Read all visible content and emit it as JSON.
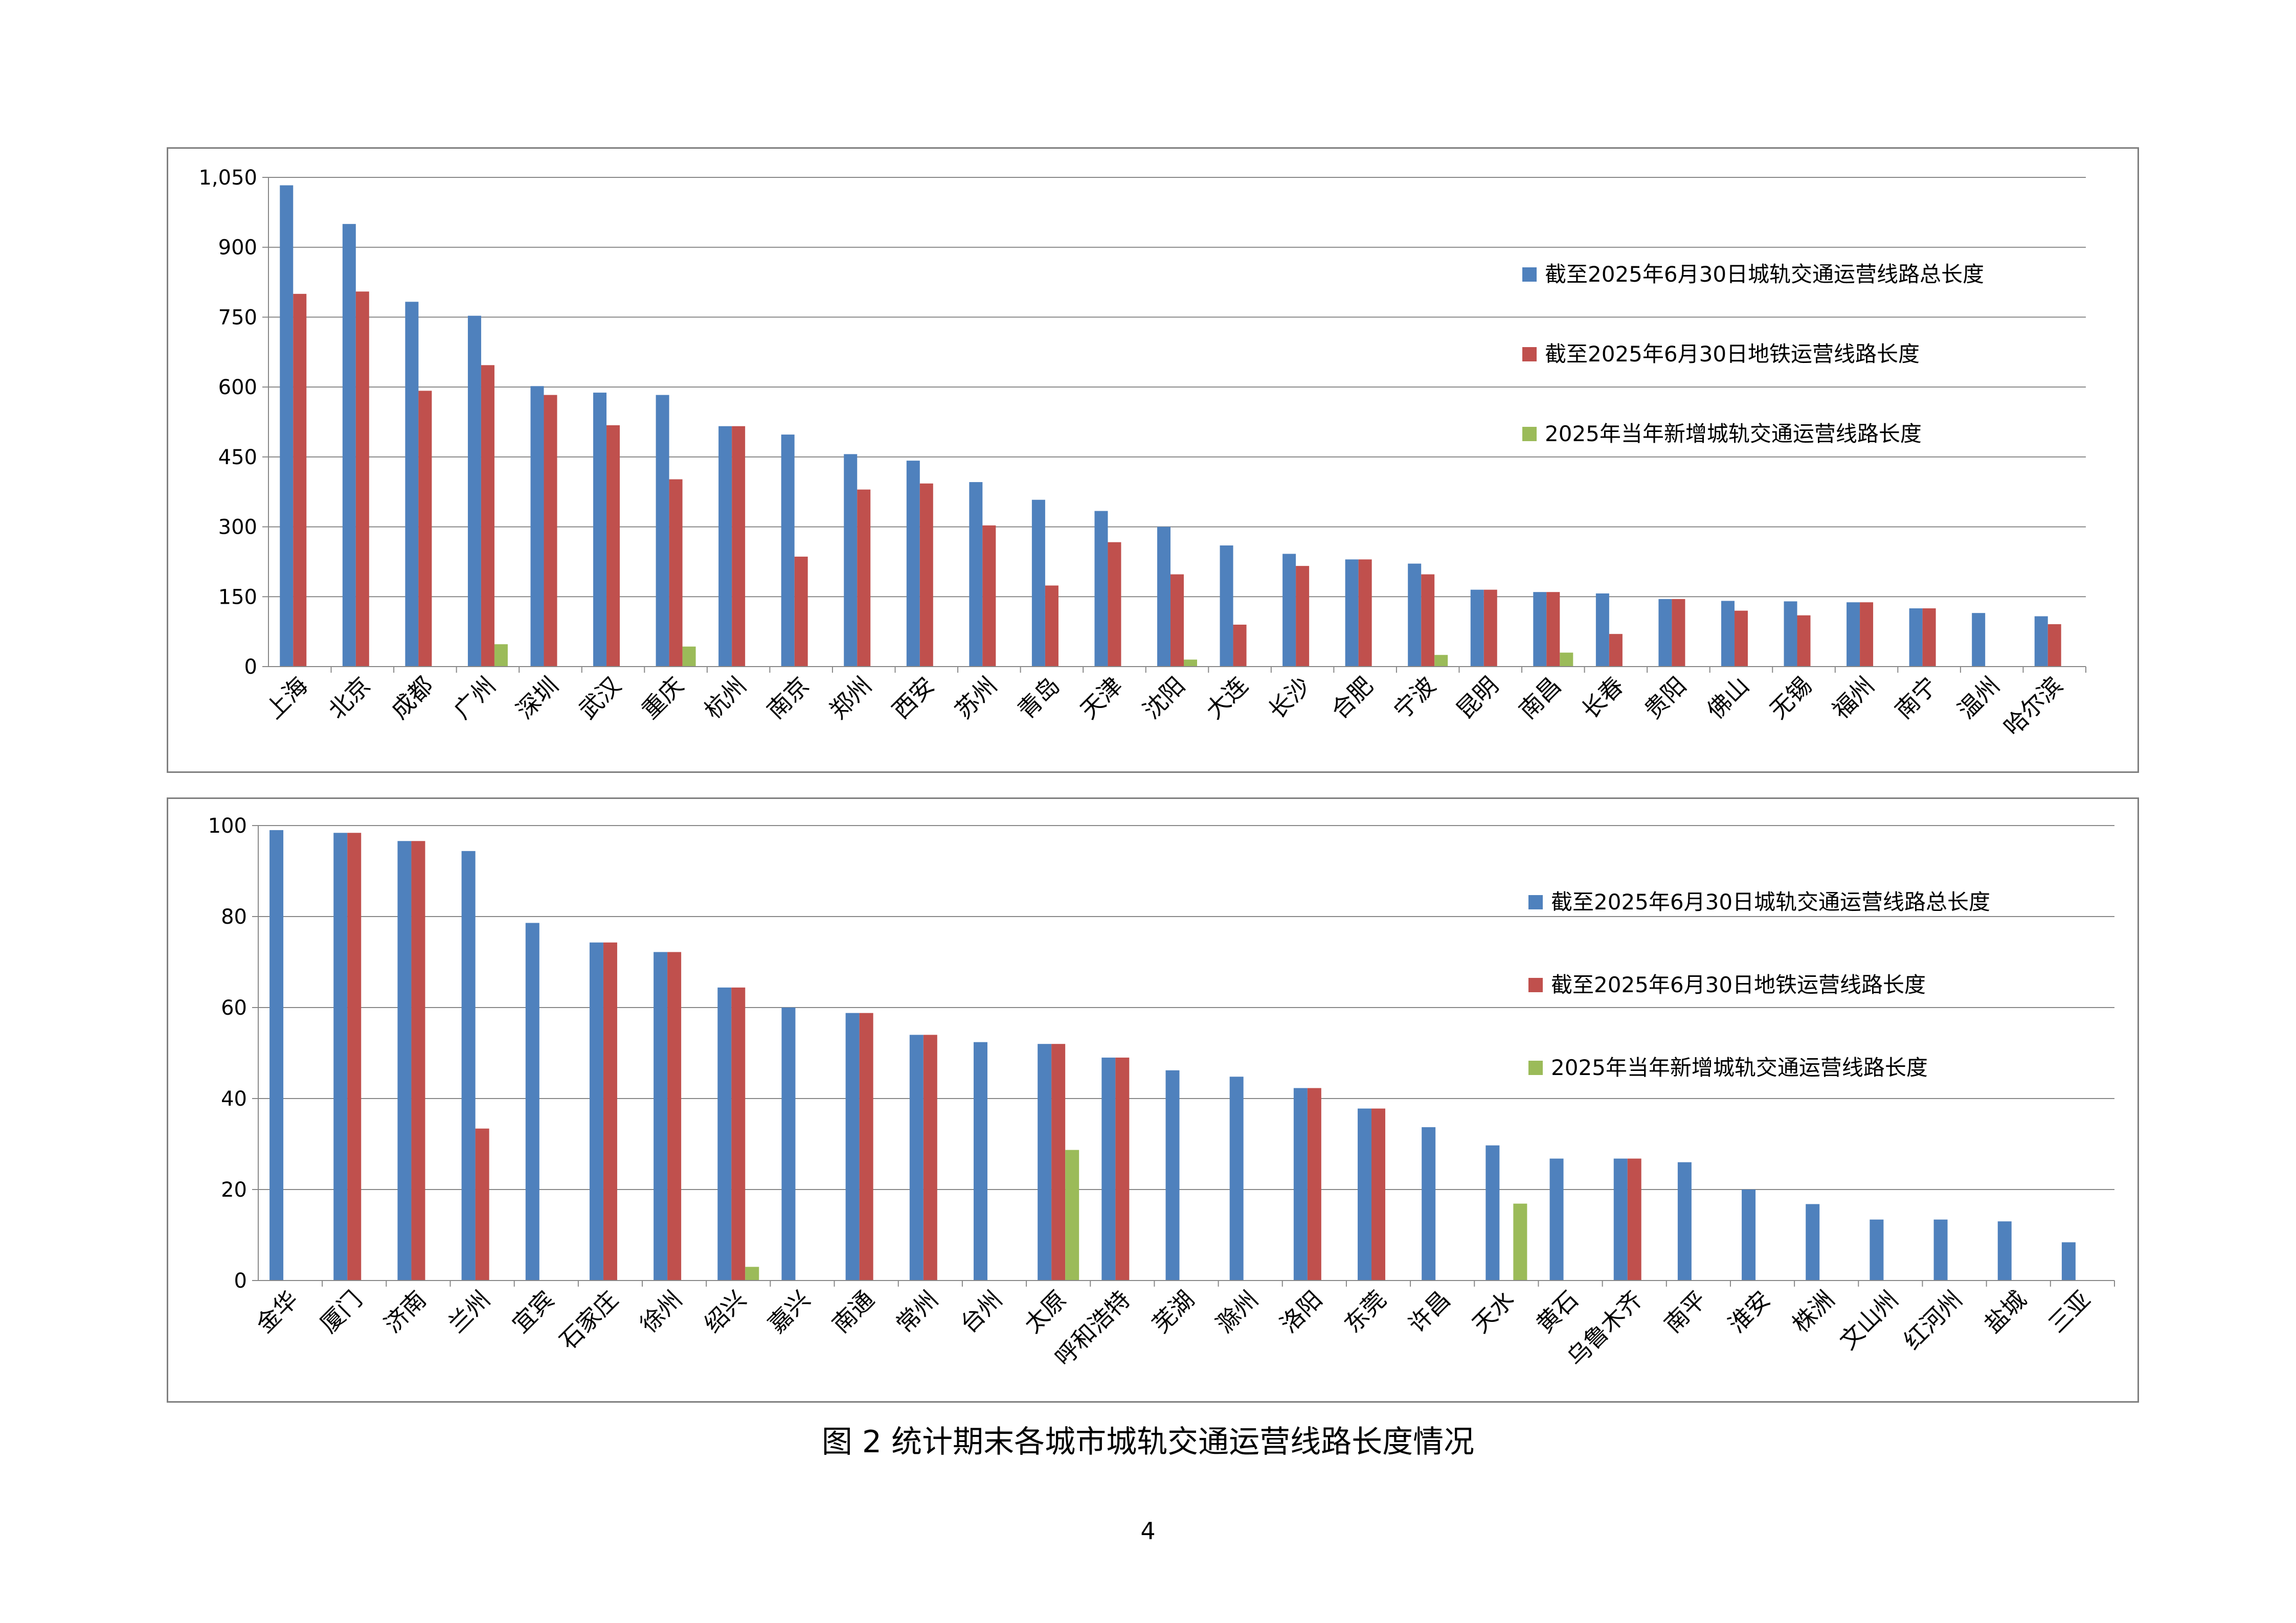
{
  "caption": "图 2  统计期末各城市城轨交通运营线路长度情况",
  "page_number": "4",
  "colors": {
    "total": "#4F81BD",
    "metro": "#C0504D",
    "new": "#9BBB59",
    "grid": "#888888"
  },
  "chart_data": [
    {
      "type": "bar",
      "legend_position": "right",
      "grid": true,
      "ylim": [
        0,
        1050
      ],
      "yticks": [
        "0",
        "150",
        "300",
        "450",
        "600",
        "750",
        "900",
        "1,050"
      ],
      "ytick_values": [
        0,
        150,
        300,
        450,
        600,
        750,
        900,
        1050
      ],
      "categories": [
        "上海",
        "北京",
        "成都",
        "广州",
        "深圳",
        "武汉",
        "重庆",
        "杭州",
        "南京",
        "郑州",
        "西安",
        "苏州",
        "青岛",
        "天津",
        "沈阳",
        "大连",
        "长沙",
        "合肥",
        "宁波",
        "昆明",
        "南昌",
        "长春",
        "贵阳",
        "佛山",
        "无锡",
        "福州",
        "南宁",
        "温州",
        "哈尔滨"
      ],
      "series": [
        {
          "name": "截至2025年6月30日城轨交通运营线路总长度",
          "color": "#4F81BD",
          "values": [
            1033,
            950,
            783,
            753,
            602,
            588,
            583,
            516,
            498,
            456,
            442,
            396,
            358,
            334,
            300,
            260,
            242,
            230,
            221,
            165,
            160,
            157,
            145,
            141,
            140,
            138,
            125,
            115,
            108
          ]
        },
        {
          "name": "截至2025年6月30日地铁运营线路长度",
          "color": "#C0504D",
          "values": [
            800,
            805,
            592,
            647,
            583,
            518,
            402,
            516,
            236,
            380,
            393,
            303,
            174,
            267,
            198,
            90,
            216,
            230,
            198,
            165,
            160,
            70,
            145,
            120,
            110,
            138,
            125,
            0,
            91
          ]
        },
        {
          "name": "2025年当年新增城轨交通运营线路长度",
          "color": "#9BBB59",
          "values": [
            0,
            0,
            0,
            48,
            0,
            0,
            43,
            0,
            0,
            0,
            0,
            0,
            0,
            0,
            15,
            0,
            0,
            0,
            25,
            0,
            30,
            0,
            0,
            0,
            0,
            0,
            0,
            0,
            0
          ]
        }
      ]
    },
    {
      "type": "bar",
      "legend_position": "right",
      "grid": true,
      "ylim": [
        0,
        100
      ],
      "yticks": [
        "0",
        "20",
        "40",
        "60",
        "80",
        "100"
      ],
      "ytick_values": [
        0,
        20,
        40,
        60,
        80,
        100
      ],
      "categories": [
        "金华",
        "厦门",
        "济南",
        "兰州",
        "宜宾",
        "石家庄",
        "徐州",
        "绍兴",
        "嘉兴",
        "南通",
        "常州",
        "台州",
        "太原",
        "呼和浩特",
        "芜湖",
        "滁州",
        "洛阳",
        "东莞",
        "许昌",
        "天水",
        "黄石",
        "乌鲁木齐",
        "南平",
        "淮安",
        "株洲",
        "文山州",
        "红河州",
        "盐城",
        "三亚"
      ],
      "series": [
        {
          "name": "截至2025年6月30日城轨交通运营线路总长度",
          "color": "#4F81BD",
          "values": [
            99,
            98.4,
            96.6,
            94.4,
            78.6,
            74.3,
            72.2,
            64.4,
            60,
            58.8,
            54,
            52.4,
            52,
            49,
            46.2,
            44.8,
            42.3,
            37.8,
            33.7,
            29.7,
            26.8,
            26.8,
            26,
            20,
            16.8,
            13.4,
            13.4,
            13,
            8.4
          ]
        },
        {
          "name": "截至2025年6月30日地铁运营线路长度",
          "color": "#C0504D",
          "values": [
            0,
            98.4,
            96.6,
            33.4,
            0,
            74.3,
            72.2,
            64.4,
            0,
            58.8,
            54,
            0,
            52,
            49,
            0,
            0,
            42.3,
            37.8,
            0,
            0,
            0,
            26.8,
            0,
            0,
            0,
            0,
            0,
            0,
            0
          ]
        },
        {
          "name": "2025年当年新增城轨交通运营线路长度",
          "color": "#9BBB59",
          "values": [
            0,
            0,
            0,
            0,
            0,
            0,
            0,
            3,
            0,
            0,
            0,
            0,
            28.7,
            0,
            0,
            0,
            0,
            0,
            0,
            16.9,
            0,
            0,
            0,
            0,
            0,
            0,
            0,
            0,
            0
          ]
        }
      ]
    }
  ]
}
